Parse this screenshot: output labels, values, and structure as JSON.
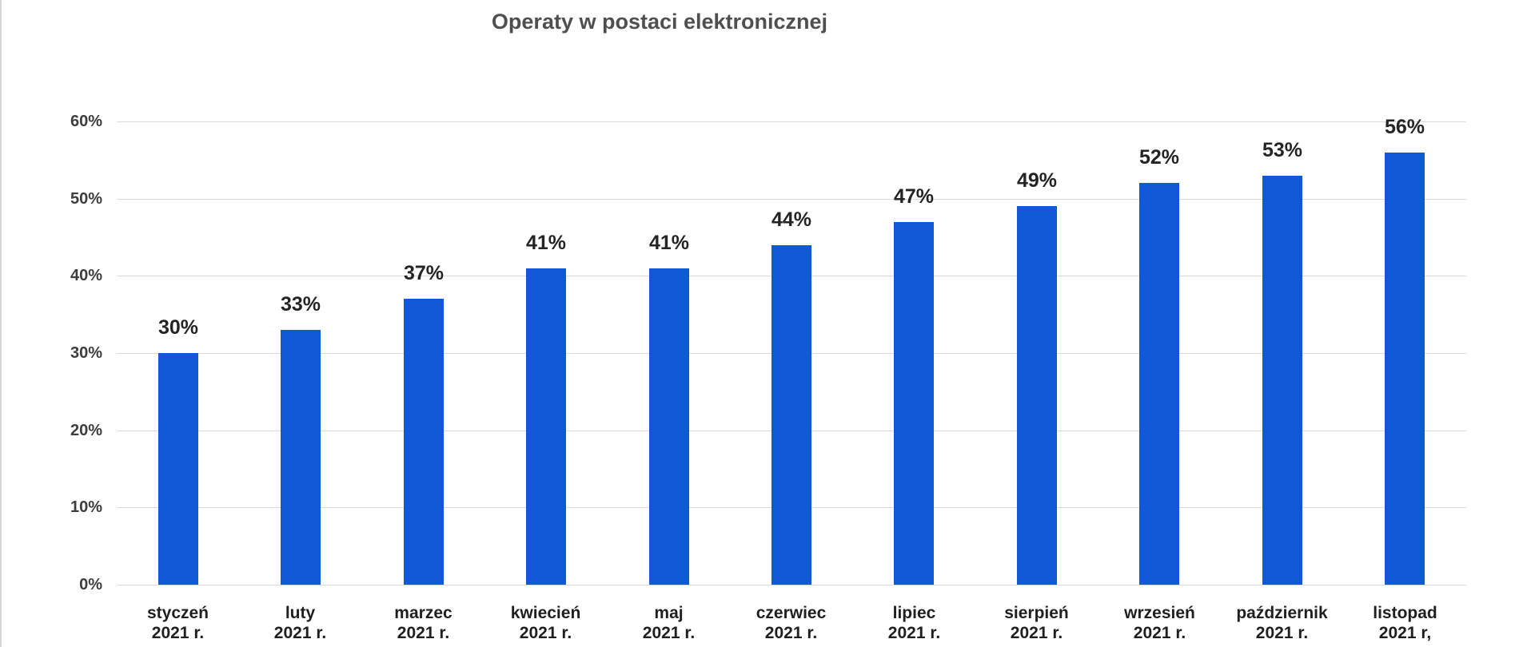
{
  "chart_data": {
    "type": "bar",
    "title": "Operaty w postaci elektronicznej",
    "categories": [
      {
        "month": "styczeń",
        "year": "2021 r."
      },
      {
        "month": "luty",
        "year": "2021 r."
      },
      {
        "month": "marzec",
        "year": "2021 r."
      },
      {
        "month": "kwiecień",
        "year": "2021 r."
      },
      {
        "month": "maj",
        "year": "2021 r."
      },
      {
        "month": "czerwiec",
        "year": "2021 r."
      },
      {
        "month": "lipiec",
        "year": "2021 r."
      },
      {
        "month": "sierpień",
        "year": "2021 r."
      },
      {
        "month": "wrzesień",
        "year": "2021 r."
      },
      {
        "month": "październik",
        "year": "2021 r."
      },
      {
        "month": "listopad",
        "year": "2021 r,"
      }
    ],
    "values": [
      30,
      33,
      37,
      41,
      41,
      44,
      47,
      49,
      52,
      53,
      56
    ],
    "data_labels": [
      "30%",
      "33%",
      "37%",
      "41%",
      "41%",
      "44%",
      "47%",
      "49%",
      "52%",
      "53%",
      "56%"
    ],
    "xlabel": "",
    "ylabel": "",
    "ylim": [
      0,
      60
    ],
    "y_ticks": [
      0,
      10,
      20,
      30,
      40,
      50,
      60
    ],
    "y_tick_labels": [
      "0%",
      "10%",
      "20%",
      "30%",
      "40%",
      "50%",
      "60%"
    ],
    "grid": true,
    "legend": "none",
    "colors": {
      "bar": "#1158d6",
      "grid": "#dadada",
      "title": "#4f4f4f",
      "data_label": "#242424",
      "axis_tick_label": "#3d3d3d",
      "category_label": "#1f1f1f",
      "left_border": "#d6d6d6",
      "background": "#ffffff"
    }
  }
}
